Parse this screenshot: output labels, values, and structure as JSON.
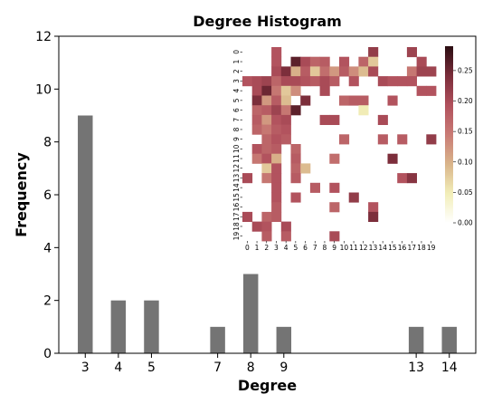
{
  "chart_data": [
    {
      "type": "bar",
      "title": "Degree Histogram",
      "xlabel": "Degree",
      "ylabel": "Frequency",
      "ylim": [
        0,
        12
      ],
      "yticks": [
        0,
        2,
        4,
        6,
        8,
        10,
        12
      ],
      "categories": [
        "3",
        "4",
        "5",
        "7",
        "8",
        "9",
        "13",
        "14"
      ],
      "x": [
        3,
        4,
        5,
        7,
        8,
        9,
        13,
        14
      ],
      "values": [
        9,
        2,
        2,
        1,
        3,
        1,
        1,
        1
      ],
      "bar_color": "#747474"
    },
    {
      "type": "heatmap",
      "row_labels": [
        "0",
        "1",
        "2",
        "3",
        "4",
        "5",
        "6",
        "7",
        "8",
        "9",
        "10",
        "11",
        "12",
        "13",
        "14",
        "15",
        "16",
        "17",
        "18",
        "19"
      ],
      "col_labels": [
        "0",
        "1",
        "2",
        "3",
        "4",
        "5",
        "6",
        "7",
        "8",
        "9",
        "10",
        "11",
        "12",
        "13",
        "14",
        "15",
        "16",
        "17",
        "18",
        "19"
      ],
      "colorbar_ticks": [
        "0.00",
        "0.05",
        "0.10",
        "0.15",
        "0.20",
        "0.25"
      ],
      "vmin": 0,
      "vmax": 0.29,
      "colormap": [
        "#ffffff",
        "#f2eeb8",
        "#d9b48a",
        "#c97b75",
        "#b0505c",
        "#7a2d3a",
        "#2b0d12"
      ],
      "cells": [
        [
          0,
          3,
          0.19
        ],
        [
          0,
          13,
          0.22
        ],
        [
          0,
          17,
          0.21
        ],
        [
          1,
          3,
          0.19
        ],
        [
          1,
          5,
          0.26
        ],
        [
          1,
          6,
          0.2
        ],
        [
          1,
          7,
          0.17
        ],
        [
          1,
          8,
          0.18
        ],
        [
          1,
          10,
          0.19
        ],
        [
          1,
          12,
          0.17
        ],
        [
          1,
          13,
          0.08
        ],
        [
          1,
          18,
          0.2
        ],
        [
          2,
          3,
          0.2
        ],
        [
          2,
          4,
          0.24
        ],
        [
          2,
          5,
          0.1
        ],
        [
          2,
          6,
          0.18
        ],
        [
          2,
          7,
          0.08
        ],
        [
          2,
          8,
          0.16
        ],
        [
          2,
          9,
          0.12
        ],
        [
          2,
          10,
          0.18
        ],
        [
          2,
          11,
          0.13
        ],
        [
          2,
          12,
          0.09
        ],
        [
          2,
          13,
          0.2
        ],
        [
          2,
          17,
          0.15
        ],
        [
          2,
          18,
          0.21
        ],
        [
          2,
          19,
          0.21
        ],
        [
          3,
          0,
          0.19
        ],
        [
          3,
          1,
          0.2
        ],
        [
          3,
          2,
          0.21
        ],
        [
          3,
          3,
          0.17
        ],
        [
          3,
          4,
          0.2
        ],
        [
          3,
          5,
          0.2
        ],
        [
          3,
          6,
          0.19
        ],
        [
          3,
          7,
          0.18
        ],
        [
          3,
          8,
          0.2
        ],
        [
          3,
          9,
          0.18
        ],
        [
          3,
          11,
          0.19
        ],
        [
          3,
          14,
          0.2
        ],
        [
          3,
          15,
          0.19
        ],
        [
          3,
          16,
          0.19
        ],
        [
          3,
          17,
          0.19
        ],
        [
          4,
          1,
          0.2
        ],
        [
          4,
          2,
          0.25
        ],
        [
          4,
          3,
          0.15
        ],
        [
          4,
          4,
          0.08
        ],
        [
          4,
          5,
          0.13
        ],
        [
          4,
          8,
          0.2
        ],
        [
          4,
          18,
          0.19
        ],
        [
          4,
          19,
          0.19
        ],
        [
          5,
          1,
          0.24
        ],
        [
          5,
          2,
          0.12
        ],
        [
          5,
          3,
          0.18
        ],
        [
          5,
          4,
          0.09
        ],
        [
          5,
          6,
          0.24
        ],
        [
          5,
          10,
          0.17
        ],
        [
          5,
          11,
          0.18
        ],
        [
          5,
          12,
          0.18
        ],
        [
          5,
          15,
          0.19
        ],
        [
          6,
          1,
          0.17
        ],
        [
          6,
          2,
          0.18
        ],
        [
          6,
          3,
          0.21
        ],
        [
          6,
          4,
          0.15
        ],
        [
          6,
          5,
          0.26
        ],
        [
          6,
          12,
          0.05
        ],
        [
          7,
          1,
          0.18
        ],
        [
          7,
          2,
          0.12
        ],
        [
          7,
          3,
          0.19
        ],
        [
          7,
          4,
          0.2
        ],
        [
          7,
          8,
          0.2
        ],
        [
          7,
          9,
          0.2
        ],
        [
          7,
          14,
          0.2
        ],
        [
          8,
          1,
          0.17
        ],
        [
          8,
          2,
          0.15
        ],
        [
          8,
          3,
          0.18
        ],
        [
          8,
          4,
          0.19
        ],
        [
          9,
          2,
          0.17
        ],
        [
          9,
          3,
          0.19
        ],
        [
          9,
          4,
          0.18
        ],
        [
          9,
          10,
          0.17
        ],
        [
          9,
          14,
          0.18
        ],
        [
          9,
          16,
          0.18
        ],
        [
          9,
          19,
          0.22
        ],
        [
          10,
          1,
          0.19
        ],
        [
          10,
          2,
          0.17
        ],
        [
          10,
          3,
          0.18
        ],
        [
          10,
          5,
          0.17
        ],
        [
          11,
          1,
          0.15
        ],
        [
          11,
          2,
          0.19
        ],
        [
          11,
          3,
          0.1
        ],
        [
          11,
          5,
          0.18
        ],
        [
          11,
          9,
          0.16
        ],
        [
          11,
          15,
          0.24
        ],
        [
          12,
          2,
          0.08
        ],
        [
          12,
          3,
          0.19
        ],
        [
          12,
          5,
          0.17
        ],
        [
          12,
          6,
          0.09
        ],
        [
          13,
          0,
          0.2
        ],
        [
          13,
          2,
          0.15
        ],
        [
          13,
          3,
          0.19
        ],
        [
          13,
          5,
          0.18
        ],
        [
          13,
          16,
          0.19
        ],
        [
          13,
          17,
          0.23
        ],
        [
          14,
          3,
          0.19
        ],
        [
          14,
          7,
          0.18
        ],
        [
          14,
          9,
          0.19
        ],
        [
          15,
          3,
          0.19
        ],
        [
          15,
          5,
          0.19
        ],
        [
          15,
          11,
          0.22
        ],
        [
          16,
          3,
          0.18
        ],
        [
          16,
          9,
          0.17
        ],
        [
          16,
          13,
          0.19
        ],
        [
          17,
          0,
          0.2
        ],
        [
          17,
          2,
          0.17
        ],
        [
          17,
          3,
          0.18
        ],
        [
          17,
          13,
          0.24
        ],
        [
          18,
          1,
          0.2
        ],
        [
          18,
          2,
          0.19
        ],
        [
          18,
          4,
          0.2
        ],
        [
          19,
          2,
          0.18
        ],
        [
          19,
          4,
          0.18
        ],
        [
          19,
          9,
          0.2
        ]
      ]
    }
  ]
}
